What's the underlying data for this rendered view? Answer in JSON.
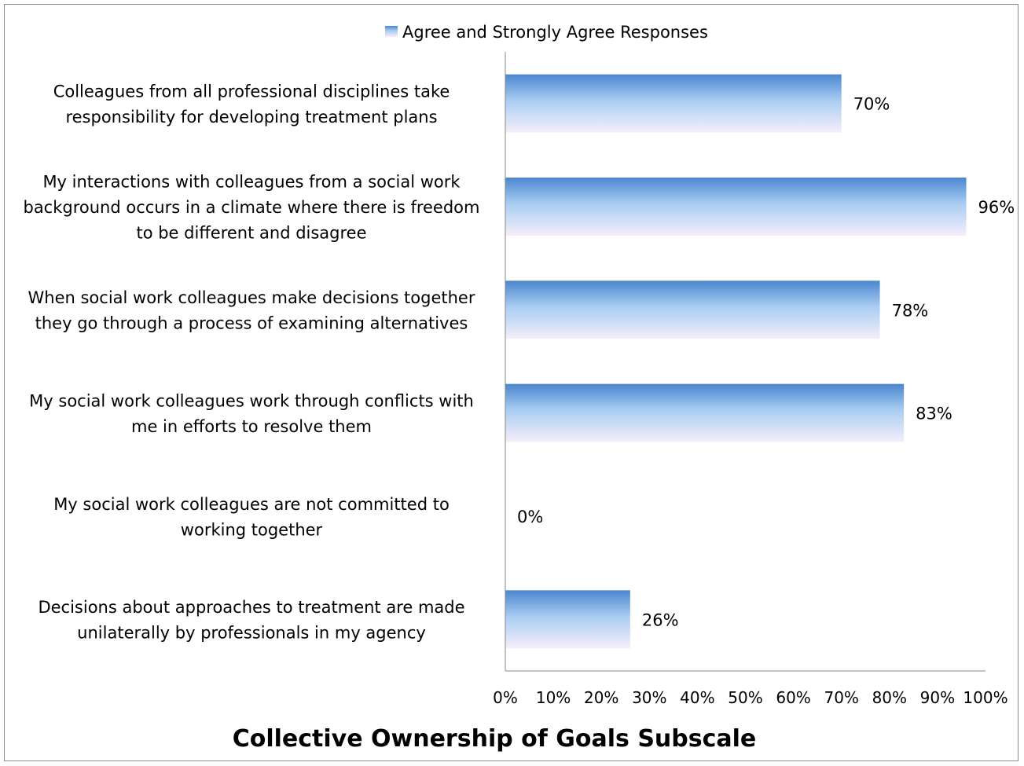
{
  "chart_data": {
    "type": "bar",
    "orientation": "horizontal",
    "title": "Collective Ownership of Goals Subscale",
    "legend": {
      "position": "top",
      "label": "Agree and Strongly Agree Responses"
    },
    "categories": [
      [
        "Colleagues from all professional disciplines take",
        "responsibility for developing treatment plans"
      ],
      [
        "My interactions with colleagues from a social work",
        "background occurs in a climate where there is freedom",
        "to be different and disagree"
      ],
      [
        "When social work colleagues make decisions together",
        "they go through a process of examining alternatives"
      ],
      [
        "My social work colleagues work through conflicts with",
        "me in efforts to resolve them"
      ],
      [
        "My social work colleagues are not committed to",
        "working together"
      ],
      [
        "Decisions about approaches to treatment are made",
        "unilaterally by professionals in my agency"
      ]
    ],
    "series": [
      {
        "name": "Agree and Strongly Agree Responses",
        "values": [
          70,
          96,
          78,
          83,
          0,
          26
        ],
        "labels": [
          "70%",
          "96%",
          "78%",
          "83%",
          "0%",
          "26%"
        ]
      }
    ],
    "xlim": [
      0,
      100
    ],
    "xticks": [
      "0%",
      "10%",
      "20%",
      "30%",
      "40%",
      "50%",
      "60%",
      "70%",
      "80%",
      "90%",
      "100%"
    ],
    "grid": false,
    "colors": {
      "bar_top": "#4a86cf",
      "bar_mid": "#a9cdf2",
      "bar_bottom": "#f6eefa",
      "axis": "#868686"
    }
  }
}
